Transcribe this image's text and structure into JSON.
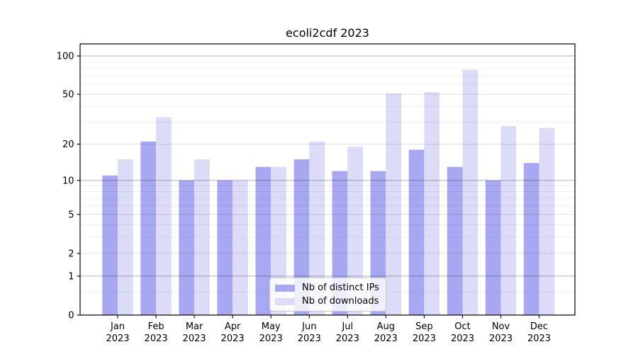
{
  "chart_data": {
    "type": "bar",
    "title": "ecoli2cdf 2023",
    "categories": [
      {
        "month": "Jan",
        "year": "2023"
      },
      {
        "month": "Feb",
        "year": "2023"
      },
      {
        "month": "Mar",
        "year": "2023"
      },
      {
        "month": "Apr",
        "year": "2023"
      },
      {
        "month": "May",
        "year": "2023"
      },
      {
        "month": "Jun",
        "year": "2023"
      },
      {
        "month": "Jul",
        "year": "2023"
      },
      {
        "month": "Aug",
        "year": "2023"
      },
      {
        "month": "Sep",
        "year": "2023"
      },
      {
        "month": "Oct",
        "year": "2023"
      },
      {
        "month": "Nov",
        "year": "2023"
      },
      {
        "month": "Dec",
        "year": "2023"
      }
    ],
    "series": [
      {
        "name": "Nb of distinct IPs",
        "color": "#a8a8f2",
        "values": [
          11,
          21,
          10,
          10,
          13,
          15,
          12,
          12,
          18,
          13,
          10,
          14
        ]
      },
      {
        "name": "Nb of downloads",
        "color": "#dcdcf8",
        "values": [
          15,
          33,
          15,
          10,
          13,
          21,
          19,
          51,
          52,
          78,
          28,
          27
        ]
      }
    ],
    "yscale": "log10(1+x)",
    "yticks": [
      0,
      1,
      2,
      5,
      10,
      20,
      50,
      100
    ],
    "ylim": [
      0,
      125
    ],
    "xlabel": "",
    "ylabel": "",
    "grid": {
      "grid_on": true,
      "major_lines": [
        1,
        10,
        100
      ],
      "labeled_lines": [
        2,
        5,
        20,
        50
      ],
      "minor_lines": [
        0.5,
        3,
        4,
        6,
        7,
        8,
        9,
        30,
        40,
        60,
        70,
        80,
        90
      ]
    },
    "legend": {
      "location": "lower center inside"
    },
    "colors": {
      "axis": "#000000",
      "background": "#ffffff",
      "grid_major": "rgba(0,0,0,0.30)",
      "grid_labeled": "rgba(0,0,0,0.12)",
      "grid_minor": "rgba(0,0,0,0.055)"
    }
  }
}
